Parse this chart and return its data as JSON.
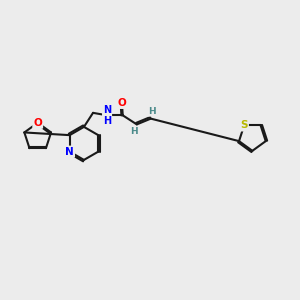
{
  "bg_color": "#ececec",
  "bond_color": "#1a1a1a",
  "bond_lw": 1.5,
  "atom_colors": {
    "N": "#0000ff",
    "O": "#ff0000",
    "S": "#b8b800",
    "H": "#4a8a8a",
    "C": "#1a1a1a"
  },
  "font_size": 7.5,
  "bold_font": true
}
